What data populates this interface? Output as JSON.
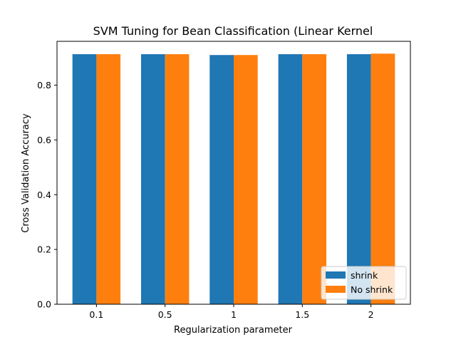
{
  "chart_data": {
    "type": "bar",
    "title": "SVM Tuning for Bean Classification (Linear Kernel",
    "xlabel": "Regularization parameter",
    "ylabel": "Cross Validation Accuracy",
    "categories": [
      "0.1",
      "0.5",
      "1",
      "1.5",
      "2"
    ],
    "series": [
      {
        "name": "shrink",
        "color": "#1f77b4",
        "values": [
          0.913,
          0.913,
          0.91,
          0.913,
          0.913
        ]
      },
      {
        "name": "No shrink",
        "color": "#ff7f0e",
        "values": [
          0.913,
          0.913,
          0.91,
          0.913,
          0.915
        ]
      }
    ],
    "ylim": [
      0,
      0.96
    ],
    "yticks": [
      0.0,
      0.2,
      0.4,
      0.6,
      0.8
    ],
    "ytick_labels": [
      "0.0",
      "0.2",
      "0.4",
      "0.6",
      "0.8"
    ],
    "grid": false,
    "legend_position": "lower-right"
  }
}
